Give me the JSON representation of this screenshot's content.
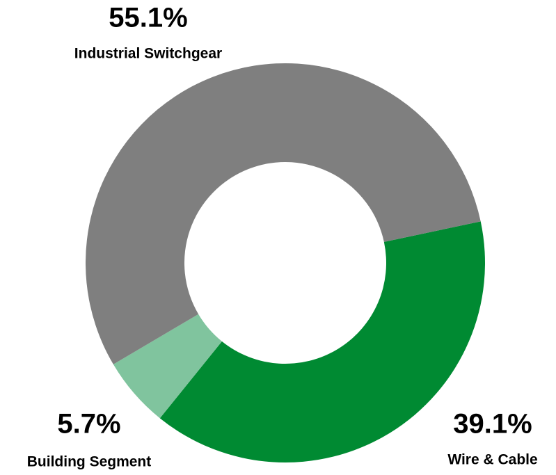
{
  "chart_data": {
    "type": "donut",
    "categories": [
      "Wire & Cable",
      "Building Segment",
      "Industrial Switchgear"
    ],
    "values": [
      39.1,
      5.7,
      55.1
    ],
    "value_labels": [
      "39.1%",
      "5.7%",
      "55.1%"
    ],
    "colors": [
      "#008a32",
      "#80c49e",
      "#7f7f7f"
    ]
  }
}
